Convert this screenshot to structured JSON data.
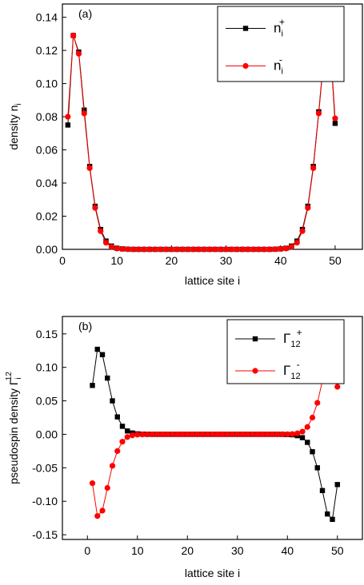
{
  "chart_data": [
    {
      "type": "line",
      "panel_label": "(a)",
      "x_label": "lattice site i",
      "y_label": {
        "text": "density n",
        "sub": "i"
      },
      "x": [
        1,
        2,
        3,
        4,
        5,
        6,
        7,
        8,
        9,
        10,
        11,
        12,
        13,
        14,
        15,
        16,
        17,
        18,
        19,
        20,
        21,
        22,
        23,
        24,
        25,
        26,
        27,
        28,
        29,
        30,
        31,
        32,
        33,
        34,
        35,
        36,
        37,
        38,
        39,
        40,
        41,
        42,
        43,
        44,
        45,
        46,
        47,
        48,
        49,
        50
      ],
      "series": [
        {
          "name": "n",
          "name_sub": "i",
          "name_sup": "+",
          "color": "#000000",
          "marker": "square",
          "values": [
            0.075,
            0.129,
            0.119,
            0.084,
            0.05,
            0.026,
            0.012,
            0.005,
            0.002,
            0.0007,
            0.0003,
            0.0001,
            0,
            0,
            0,
            0,
            0,
            0,
            0,
            0,
            0,
            0,
            0,
            0,
            0,
            0,
            0,
            0,
            0,
            0,
            0,
            0,
            0,
            0,
            0,
            0,
            0,
            0,
            0.0001,
            0.0003,
            0.0007,
            0.002,
            0.005,
            0.012,
            0.026,
            0.05,
            0.083,
            0.119,
            0.129,
            0.076
          ]
        },
        {
          "name": "n",
          "name_sub": "i",
          "name_sup": "-",
          "color": "#ff0000",
          "marker": "circle",
          "values": [
            0.08,
            0.129,
            0.118,
            0.082,
            0.049,
            0.025,
            0.011,
            0.004,
            0.0015,
            0.0005,
            0.0002,
            0.0001,
            0,
            0,
            0,
            0,
            0,
            0,
            0,
            0,
            0,
            0,
            0,
            0,
            0,
            0,
            0,
            0,
            0,
            0,
            0,
            0,
            0,
            0,
            0,
            0,
            0,
            0,
            0.0001,
            0.0002,
            0.0005,
            0.0015,
            0.004,
            0.011,
            0.025,
            0.049,
            0.082,
            0.118,
            0.129,
            0.079
          ]
        }
      ],
      "xlim": [
        0,
        55
      ],
      "xticks": [
        0,
        10,
        20,
        30,
        40,
        50
      ],
      "ylim": [
        0,
        0.148
      ],
      "yticks": [
        {
          "value": 0,
          "label": "0.00"
        },
        {
          "value": 0.02,
          "label": "0.02"
        },
        {
          "value": 0.04,
          "label": "0.04"
        },
        {
          "value": 0.06,
          "label": "0.06"
        },
        {
          "value": 0.08,
          "label": "0.08"
        },
        {
          "value": 0.1,
          "label": "0.10"
        },
        {
          "value": 0.12,
          "label": "0.12"
        },
        {
          "value": 0.14,
          "label": "0.14"
        }
      ],
      "legend": "upper right"
    },
    {
      "type": "line",
      "panel_label": "(b)",
      "x_label": "lattice site i",
      "y_label": {
        "text": "pseudospin density Γ",
        "sub": "i",
        "sup": "12"
      },
      "x": [
        1,
        2,
        3,
        4,
        5,
        6,
        7,
        8,
        9,
        10,
        11,
        12,
        13,
        14,
        15,
        16,
        17,
        18,
        19,
        20,
        21,
        22,
        23,
        24,
        25,
        26,
        27,
        28,
        29,
        30,
        31,
        32,
        33,
        34,
        35,
        36,
        37,
        38,
        39,
        40,
        41,
        42,
        43,
        44,
        45,
        46,
        47,
        48,
        49,
        50
      ],
      "series": [
        {
          "name": "Γ",
          "name_sub": "12",
          "name_sup": "+",
          "color": "#000000",
          "marker": "square",
          "values": [
            0.073,
            0.127,
            0.119,
            0.084,
            0.05,
            0.026,
            0.012,
            0.005,
            0.002,
            0.0007,
            0.0003,
            0.0001,
            0,
            0,
            0,
            0,
            0,
            0,
            0,
            0,
            0,
            0,
            0,
            0,
            0,
            0,
            0,
            0,
            0,
            0,
            0,
            0,
            0,
            0,
            0,
            0,
            0,
            0,
            -0.0001,
            -0.0003,
            -0.0007,
            -0.002,
            -0.005,
            -0.012,
            -0.026,
            -0.05,
            -0.084,
            -0.119,
            -0.127,
            -0.075
          ]
        },
        {
          "name": "Γ",
          "name_sub": "12",
          "name_sup": "-",
          "color": "#ff0000",
          "marker": "circle",
          "values": [
            -0.073,
            -0.122,
            -0.114,
            -0.08,
            -0.047,
            -0.025,
            -0.011,
            -0.004,
            -0.0015,
            -0.0005,
            -0.0002,
            -0.0001,
            0,
            0,
            0,
            0,
            0,
            0,
            0,
            0,
            0,
            0,
            0,
            0,
            0,
            0,
            0,
            0,
            0,
            0,
            0,
            0,
            0,
            0,
            0,
            0,
            0,
            0,
            0.0001,
            0.0002,
            0.0005,
            0.0015,
            0.004,
            0.011,
            0.025,
            0.047,
            0.08,
            0.114,
            0.122,
            0.071
          ]
        }
      ],
      "xlim": [
        -5,
        55
      ],
      "xticks": [
        0,
        10,
        20,
        30,
        40,
        50
      ],
      "ylim": [
        -0.157,
        0.176
      ],
      "yticks": [
        {
          "value": -0.15,
          "label": "-0.15"
        },
        {
          "value": -0.1,
          "label": "-0.10"
        },
        {
          "value": -0.05,
          "label": "-0.05"
        },
        {
          "value": 0,
          "label": "0.00"
        },
        {
          "value": 0.05,
          "label": "0.05"
        },
        {
          "value": 0.1,
          "label": "0.10"
        },
        {
          "value": 0.15,
          "label": "0.15"
        }
      ],
      "legend": "upper right"
    }
  ]
}
